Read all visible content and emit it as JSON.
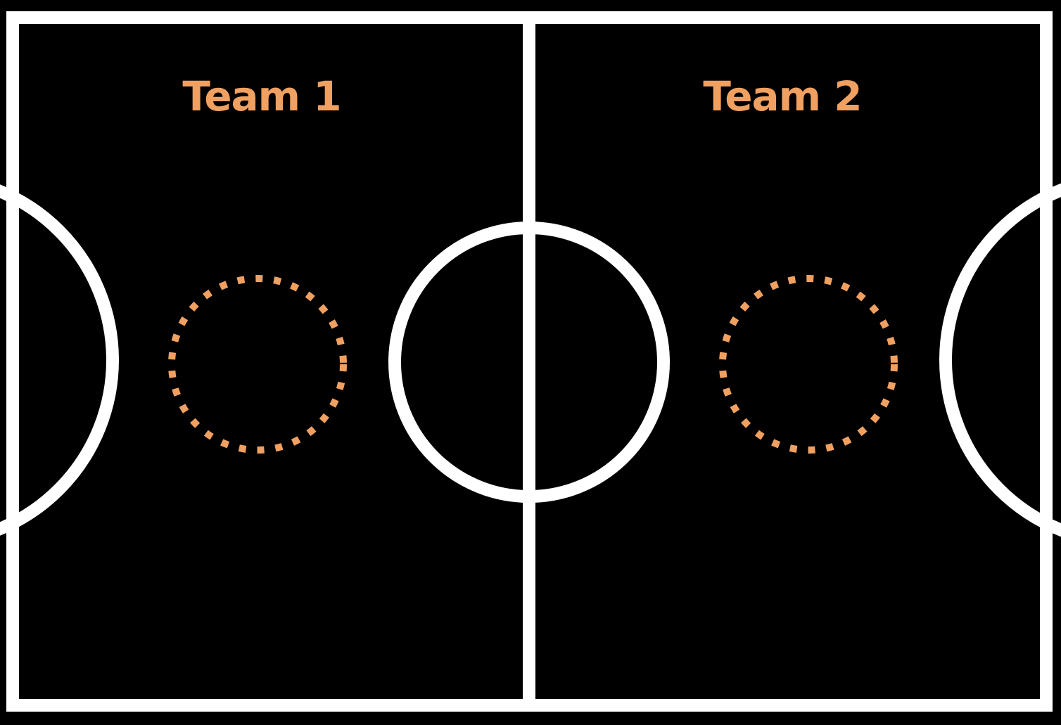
{
  "colors": {
    "background": "#000000",
    "court_lines": "#ffffff",
    "accent": "#f0a060"
  },
  "teams": [
    {
      "label": "Team 1"
    },
    {
      "label": "Team 2"
    }
  ]
}
